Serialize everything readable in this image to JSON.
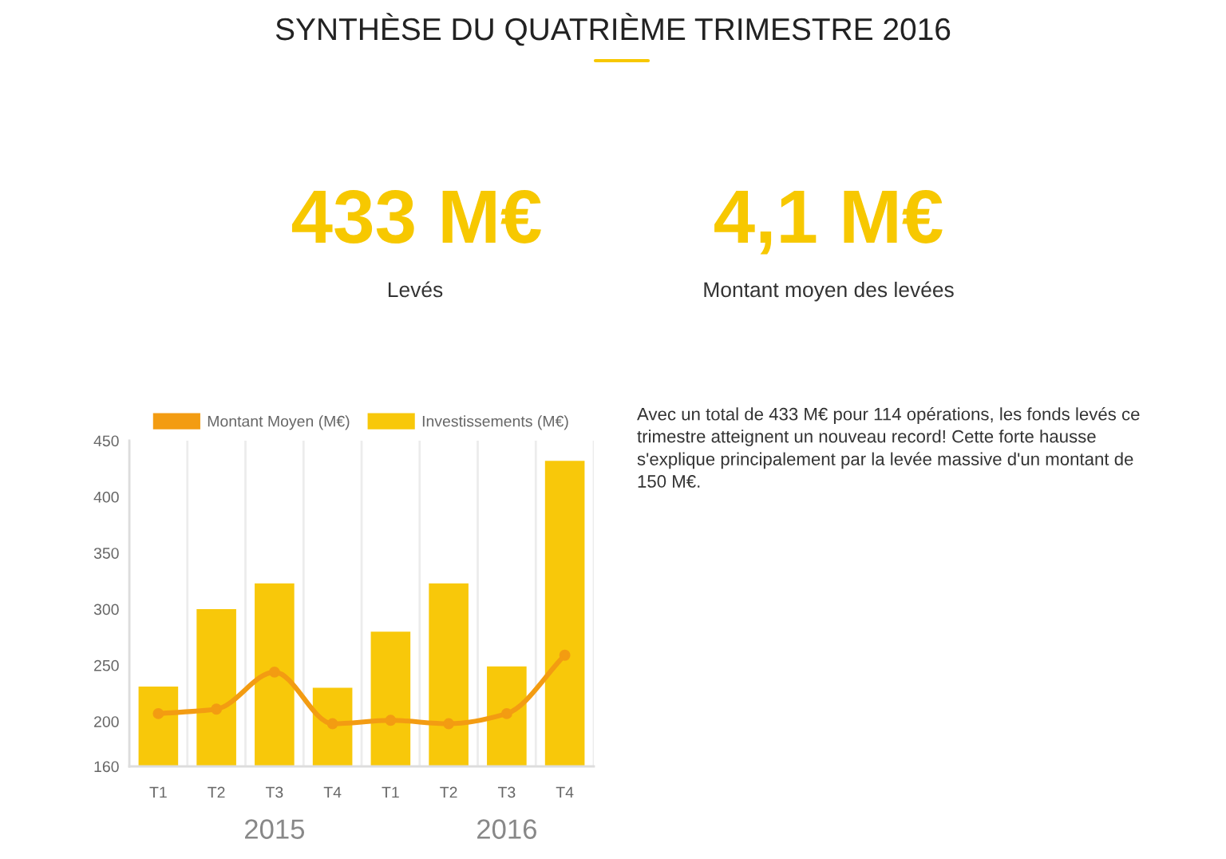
{
  "chart_data": {
    "type": "bar",
    "title": "SYNTHÈSE DU QUATRIÈME TRIMESTRE 2016",
    "categories": [
      "T1",
      "T2",
      "T3",
      "T4",
      "T1",
      "T2",
      "T3",
      "T4"
    ],
    "series": [
      {
        "name": "Montant Moyen (M€)",
        "type": "line",
        "color": "#f39c12",
        "values": [
          207,
          211,
          244,
          198,
          201,
          198,
          207,
          259
        ]
      },
      {
        "name": "Investissements (M€)",
        "color": "#f8c80a",
        "values": [
          232,
          301,
          324,
          231,
          281,
          324,
          250,
          433
        ]
      }
    ],
    "ylim": [
      160,
      450
    ],
    "yticks": [
      160,
      200,
      250,
      300,
      350,
      400,
      450
    ],
    "grid": "x",
    "legend": "top",
    "marker": "circle",
    "annotations": [
      "433 M€",
      "Levés",
      "4,1 M€",
      "Montant moyen des levées",
      "Avec un total de 433 M€ pour 114 opérations, les fonds levés ce trimestre atteignent un nouveau record! Cette forte hausse s'explique principalement par la levée massive d'un montant de 150 M€.",
      "2015",
      "2016"
    ]
  }
}
